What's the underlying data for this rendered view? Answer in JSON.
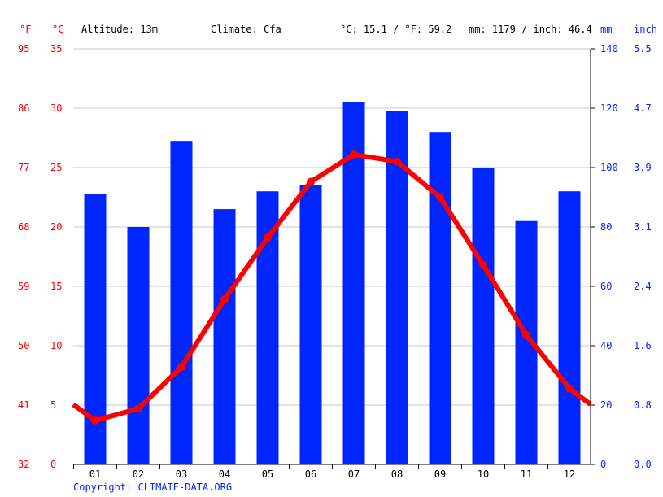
{
  "header": {
    "f_unit": "°F",
    "c_unit": "°C",
    "altitude": "Altitude: 13m",
    "climate": "Climate: Cfa",
    "avg_temp": "°C: 15.1 / °F: 59.2",
    "precip": "mm: 1179 / inch: 46.4",
    "mm_unit": "mm",
    "inch_unit": "inch"
  },
  "copyright": "Copyright: CLIMATE-DATA.ORG",
  "chart_data": {
    "type": "bar+line",
    "categories": [
      "01",
      "02",
      "03",
      "04",
      "05",
      "06",
      "07",
      "08",
      "09",
      "10",
      "11",
      "12"
    ],
    "series": [
      {
        "type": "bar",
        "axis": "right",
        "unit": "mm",
        "color": "#0026ff",
        "values": [
          91,
          80,
          109,
          86,
          92,
          94,
          122,
          119,
          112,
          100,
          82,
          92
        ]
      },
      {
        "type": "line",
        "axis": "left",
        "unit": "°C",
        "color": "#ff0000",
        "values": [
          3.7,
          4.7,
          8.2,
          13.9,
          19.1,
          23.8,
          26.1,
          25.5,
          22.5,
          16.8,
          10.9,
          6.4
        ]
      }
    ],
    "left_axis_c": {
      "range": [
        0,
        35
      ],
      "ticks": [
        "0",
        "5",
        "10",
        "15",
        "20",
        "25",
        "30",
        "35"
      ],
      "color": "#ff0000"
    },
    "left_axis_f": {
      "ticks": [
        "32",
        "41",
        "50",
        "59",
        "68",
        "77",
        "86",
        "95"
      ],
      "color": "#ff0000"
    },
    "right_axis_mm": {
      "range": [
        0,
        140
      ],
      "ticks": [
        "0",
        "20",
        "40",
        "60",
        "80",
        "100",
        "120",
        "140"
      ],
      "color": "#0026ff"
    },
    "right_axis_inch": {
      "ticks": [
        "0.0",
        "0.8",
        "1.6",
        "2.4",
        "3.1",
        "3.9",
        "4.7",
        "5.5"
      ],
      "color": "#0026ff"
    },
    "grid": true
  }
}
